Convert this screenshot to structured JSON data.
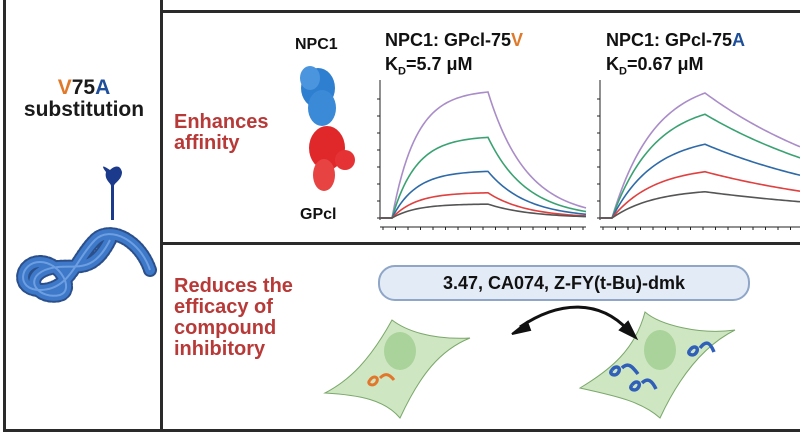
{
  "left_panel": {
    "title_parts": [
      {
        "text": "V",
        "color": "#e07a2a"
      },
      {
        "text": "75",
        "color": "#1a1a1a"
      },
      {
        "text": "A",
        "color": "#1f4e9a"
      }
    ],
    "title_line2": "substitution"
  },
  "affinity_panel": {
    "effect": [
      "Enhances",
      "affinity"
    ],
    "protein_top_label": "NPC1",
    "protein_bottom_label": "GPcl"
  },
  "inhibitor_panel": {
    "effect": [
      "Reduces the",
      "efficacy of",
      "compound",
      "inhibitory"
    ],
    "compounds": "3.47, CA074, Z-FY(t-Bu)-dmk"
  },
  "colors": {
    "orange": "#e07a2a",
    "blue": "#1f4e9a",
    "red_text": "#b83a38",
    "cell": "#cfe6c2",
    "virus": "#3d78c9"
  },
  "chart_data": [
    {
      "type": "line",
      "title_prefix": "NPC1: GPcl-75",
      "title_suffix": "V",
      "title_suffix_color": "#e07a2a",
      "kd_label": "K",
      "kd_sub": "D",
      "kd_value": "=5.7 μM",
      "kinetics": "fast association, fast dissociation",
      "series": [
        {
          "color": "#a98cc8",
          "plateau": 1.0,
          "remaining_end": 0.08
        },
        {
          "color": "#3aa272",
          "plateau": 0.64,
          "remaining_end": 0.08
        },
        {
          "color": "#2e6aa8",
          "plateau": 0.37,
          "remaining_end": 0.08
        },
        {
          "color": "#e0403f",
          "plateau": 0.2,
          "remaining_end": 0.08
        },
        {
          "color": "#555555",
          "plateau": 0.11,
          "remaining_end": 0.1
        }
      ],
      "assoc_rate": 4.0,
      "ylim": [
        0,
        1
      ]
    },
    {
      "type": "line",
      "title_prefix": "NPC1: GPcl-75",
      "title_suffix": "A",
      "title_suffix_color": "#1f4e9a",
      "kd_label": "K",
      "kd_sub": "D",
      "kd_value": "=0.67 μM",
      "kinetics": "association, slow dissociation",
      "series": [
        {
          "color": "#a98cc8",
          "plateau": 1.0,
          "remaining_end": 0.57
        },
        {
          "color": "#3aa272",
          "plateau": 0.83,
          "remaining_end": 0.58
        },
        {
          "color": "#2e6aa8",
          "plateau": 0.59,
          "remaining_end": 0.58
        },
        {
          "color": "#e0403f",
          "plateau": 0.37,
          "remaining_end": 0.58
        },
        {
          "color": "#555555",
          "plateau": 0.21,
          "remaining_end": 0.62
        }
      ],
      "assoc_rate": 2.2,
      "ylim": [
        0,
        1
      ]
    }
  ]
}
